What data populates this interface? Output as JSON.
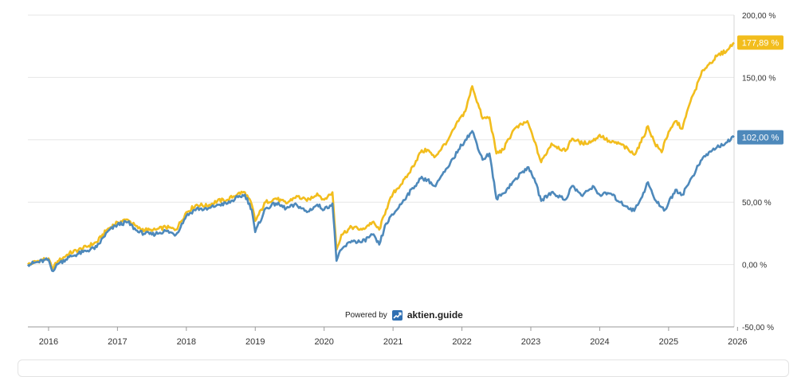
{
  "chart_data": {
    "type": "line",
    "ylim": [
      -50,
      200
    ],
    "xlim": [
      2015.7,
      2025.95
    ],
    "y_ticks": [
      -50,
      0,
      50,
      100,
      150,
      200
    ],
    "y_tick_labels": [
      "-50,00 %",
      "0,00 %",
      "50,00 %",
      "100,00 %",
      "150,00 %",
      "200,00 %"
    ],
    "x_ticks": [
      2016,
      2017,
      2018,
      2019,
      2020,
      2021,
      2022,
      2023,
      2024,
      2025,
      2026
    ],
    "x_tick_labels": [
      "2016",
      "2017",
      "2018",
      "2019",
      "2020",
      "2021",
      "2022",
      "2023",
      "2024",
      "2025",
      "2026"
    ],
    "grid": true,
    "y_axis_position": "right",
    "series": [
      {
        "color": "#f2bd1d",
        "end_label": "177,89 %",
        "points": [
          [
            2015.7,
            0
          ],
          [
            2015.85,
            3
          ],
          [
            2016.0,
            5
          ],
          [
            2016.05,
            -3
          ],
          [
            2016.15,
            3
          ],
          [
            2016.3,
            9
          ],
          [
            2016.5,
            13
          ],
          [
            2016.7,
            18
          ],
          [
            2016.85,
            28
          ],
          [
            2017.0,
            34
          ],
          [
            2017.15,
            36
          ],
          [
            2017.3,
            29
          ],
          [
            2017.5,
            27
          ],
          [
            2017.7,
            30
          ],
          [
            2017.85,
            28
          ],
          [
            2018.0,
            42
          ],
          [
            2018.15,
            48
          ],
          [
            2018.3,
            47
          ],
          [
            2018.45,
            51
          ],
          [
            2018.6,
            52
          ],
          [
            2018.75,
            57
          ],
          [
            2018.85,
            58
          ],
          [
            2018.95,
            48
          ],
          [
            2019.0,
            35
          ],
          [
            2019.15,
            50
          ],
          [
            2019.3,
            53
          ],
          [
            2019.45,
            49
          ],
          [
            2019.6,
            55
          ],
          [
            2019.75,
            51
          ],
          [
            2019.9,
            57
          ],
          [
            2020.0,
            52
          ],
          [
            2020.12,
            58
          ],
          [
            2020.18,
            12
          ],
          [
            2020.25,
            24
          ],
          [
            2020.4,
            30
          ],
          [
            2020.55,
            28
          ],
          [
            2020.7,
            34
          ],
          [
            2020.8,
            28
          ],
          [
            2020.9,
            44
          ],
          [
            2021.0,
            57
          ],
          [
            2021.2,
            70
          ],
          [
            2021.4,
            90
          ],
          [
            2021.5,
            92
          ],
          [
            2021.6,
            86
          ],
          [
            2021.8,
            100
          ],
          [
            2021.95,
            115
          ],
          [
            2022.05,
            123
          ],
          [
            2022.15,
            143
          ],
          [
            2022.3,
            117
          ],
          [
            2022.4,
            118
          ],
          [
            2022.5,
            89
          ],
          [
            2022.6,
            92
          ],
          [
            2022.75,
            108
          ],
          [
            2022.95,
            115
          ],
          [
            2023.05,
            99
          ],
          [
            2023.15,
            82
          ],
          [
            2023.3,
            97
          ],
          [
            2023.5,
            91
          ],
          [
            2023.6,
            101
          ],
          [
            2023.75,
            97
          ],
          [
            2023.9,
            99
          ],
          [
            2024.0,
            104
          ],
          [
            2024.15,
            98
          ],
          [
            2024.3,
            97
          ],
          [
            2024.5,
            88
          ],
          [
            2024.6,
            98
          ],
          [
            2024.7,
            111
          ],
          [
            2024.8,
            97
          ],
          [
            2024.9,
            90
          ],
          [
            2024.95,
            100
          ],
          [
            2025.1,
            115
          ],
          [
            2025.2,
            109
          ],
          [
            2025.3,
            128
          ],
          [
            2025.5,
            156
          ],
          [
            2025.7,
            167
          ],
          [
            2025.85,
            172
          ],
          [
            2025.95,
            178
          ]
        ]
      },
      {
        "color": "#4e89bb",
        "end_label": "102,00 %",
        "points": [
          [
            2015.7,
            0
          ],
          [
            2015.85,
            2
          ],
          [
            2016.0,
            4
          ],
          [
            2016.05,
            -5
          ],
          [
            2016.15,
            1
          ],
          [
            2016.3,
            6
          ],
          [
            2016.5,
            10
          ],
          [
            2016.7,
            14
          ],
          [
            2016.85,
            26
          ],
          [
            2017.0,
            32
          ],
          [
            2017.15,
            34
          ],
          [
            2017.3,
            26
          ],
          [
            2017.5,
            24
          ],
          [
            2017.7,
            27
          ],
          [
            2017.85,
            24
          ],
          [
            2018.0,
            39
          ],
          [
            2018.15,
            45
          ],
          [
            2018.3,
            44
          ],
          [
            2018.45,
            48
          ],
          [
            2018.6,
            49
          ],
          [
            2018.75,
            54
          ],
          [
            2018.85,
            56
          ],
          [
            2018.95,
            44
          ],
          [
            2019.0,
            26
          ],
          [
            2019.15,
            45
          ],
          [
            2019.3,
            49
          ],
          [
            2019.45,
            45
          ],
          [
            2019.6,
            48
          ],
          [
            2019.75,
            42
          ],
          [
            2019.9,
            48
          ],
          [
            2020.0,
            44
          ],
          [
            2020.12,
            49
          ],
          [
            2020.18,
            3
          ],
          [
            2020.25,
            12
          ],
          [
            2020.4,
            19
          ],
          [
            2020.55,
            18
          ],
          [
            2020.7,
            24
          ],
          [
            2020.8,
            16
          ],
          [
            2020.9,
            33
          ],
          [
            2021.0,
            40
          ],
          [
            2021.2,
            55
          ],
          [
            2021.4,
            69
          ],
          [
            2021.5,
            68
          ],
          [
            2021.6,
            63
          ],
          [
            2021.8,
            78
          ],
          [
            2021.95,
            92
          ],
          [
            2022.05,
            100
          ],
          [
            2022.15,
            107
          ],
          [
            2022.3,
            84
          ],
          [
            2022.4,
            89
          ],
          [
            2022.5,
            53
          ],
          [
            2022.6,
            57
          ],
          [
            2022.75,
            67
          ],
          [
            2022.95,
            78
          ],
          [
            2023.05,
            69
          ],
          [
            2023.15,
            51
          ],
          [
            2023.3,
            58
          ],
          [
            2023.5,
            52
          ],
          [
            2023.6,
            63
          ],
          [
            2023.75,
            55
          ],
          [
            2023.9,
            63
          ],
          [
            2024.0,
            56
          ],
          [
            2024.15,
            57
          ],
          [
            2024.3,
            50
          ],
          [
            2024.5,
            43
          ],
          [
            2024.6,
            53
          ],
          [
            2024.7,
            66
          ],
          [
            2024.8,
            52
          ],
          [
            2024.9,
            46
          ],
          [
            2024.95,
            44
          ],
          [
            2025.1,
            60
          ],
          [
            2025.2,
            56
          ],
          [
            2025.3,
            66
          ],
          [
            2025.5,
            86
          ],
          [
            2025.7,
            94
          ],
          [
            2025.85,
            98
          ],
          [
            2025.95,
            102
          ]
        ]
      }
    ]
  },
  "footer": {
    "powered_by": "Powered by",
    "brand": "aktien.guide",
    "brand_icon": "trend-chart-icon",
    "brand_color": "#2f6fb2"
  }
}
